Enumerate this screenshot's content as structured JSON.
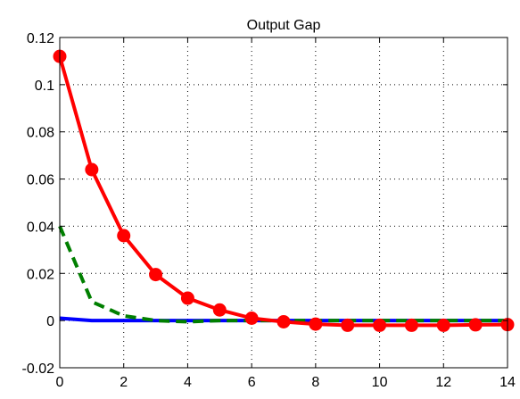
{
  "chart_data": {
    "type": "line",
    "title": "Output Gap",
    "xlabel": "",
    "ylabel": "",
    "xlim": [
      0,
      14
    ],
    "ylim": [
      -0.02,
      0.12
    ],
    "xticks": [
      0,
      2,
      4,
      6,
      8,
      10,
      12,
      14
    ],
    "yticks": [
      -0.02,
      0,
      0.02,
      0.04,
      0.06,
      0.08,
      0.1,
      0.12
    ],
    "xtick_labels": [
      "0",
      "2",
      "4",
      "6",
      "8",
      "10",
      "12",
      "14"
    ],
    "ytick_labels": [
      "-0.02",
      "0",
      "0.02",
      "0.04",
      "0.06",
      "0.08",
      "0.1",
      "0.12"
    ],
    "grid": true,
    "series": [
      {
        "color": "#0000ff",
        "style": "solid",
        "marker": "none",
        "x": [
          0,
          1,
          2,
          3,
          4,
          5,
          6,
          7,
          8,
          9,
          10,
          11,
          12,
          13,
          14
        ],
        "values": [
          0.001,
          0.0,
          0.0,
          0.0,
          0.0,
          0.0,
          0.0,
          0.0,
          0.0,
          0.0,
          0.0,
          0.0,
          0.0,
          0.0,
          0.0
        ]
      },
      {
        "color": "#007f00",
        "style": "dashed",
        "marker": "none",
        "x": [
          0,
          1,
          2,
          3,
          4,
          5,
          6,
          7,
          8,
          9,
          10,
          11,
          12,
          13,
          14
        ],
        "values": [
          0.04,
          0.008,
          0.002,
          0.0,
          -0.0005,
          0.0,
          0.0,
          0.0,
          0.0,
          0.0,
          0.0,
          0.0,
          0.0,
          0.0,
          0.0
        ]
      },
      {
        "color": "#ff0000",
        "style": "solid",
        "marker": "circle",
        "x": [
          0,
          1,
          2,
          3,
          4,
          5,
          6,
          7,
          8,
          9,
          10,
          11,
          12,
          13,
          14
        ],
        "values": [
          0.112,
          0.064,
          0.036,
          0.0195,
          0.0095,
          0.0045,
          0.001,
          -0.0005,
          -0.0015,
          -0.002,
          -0.002,
          -0.002,
          -0.002,
          -0.0018,
          -0.0017
        ]
      }
    ]
  }
}
